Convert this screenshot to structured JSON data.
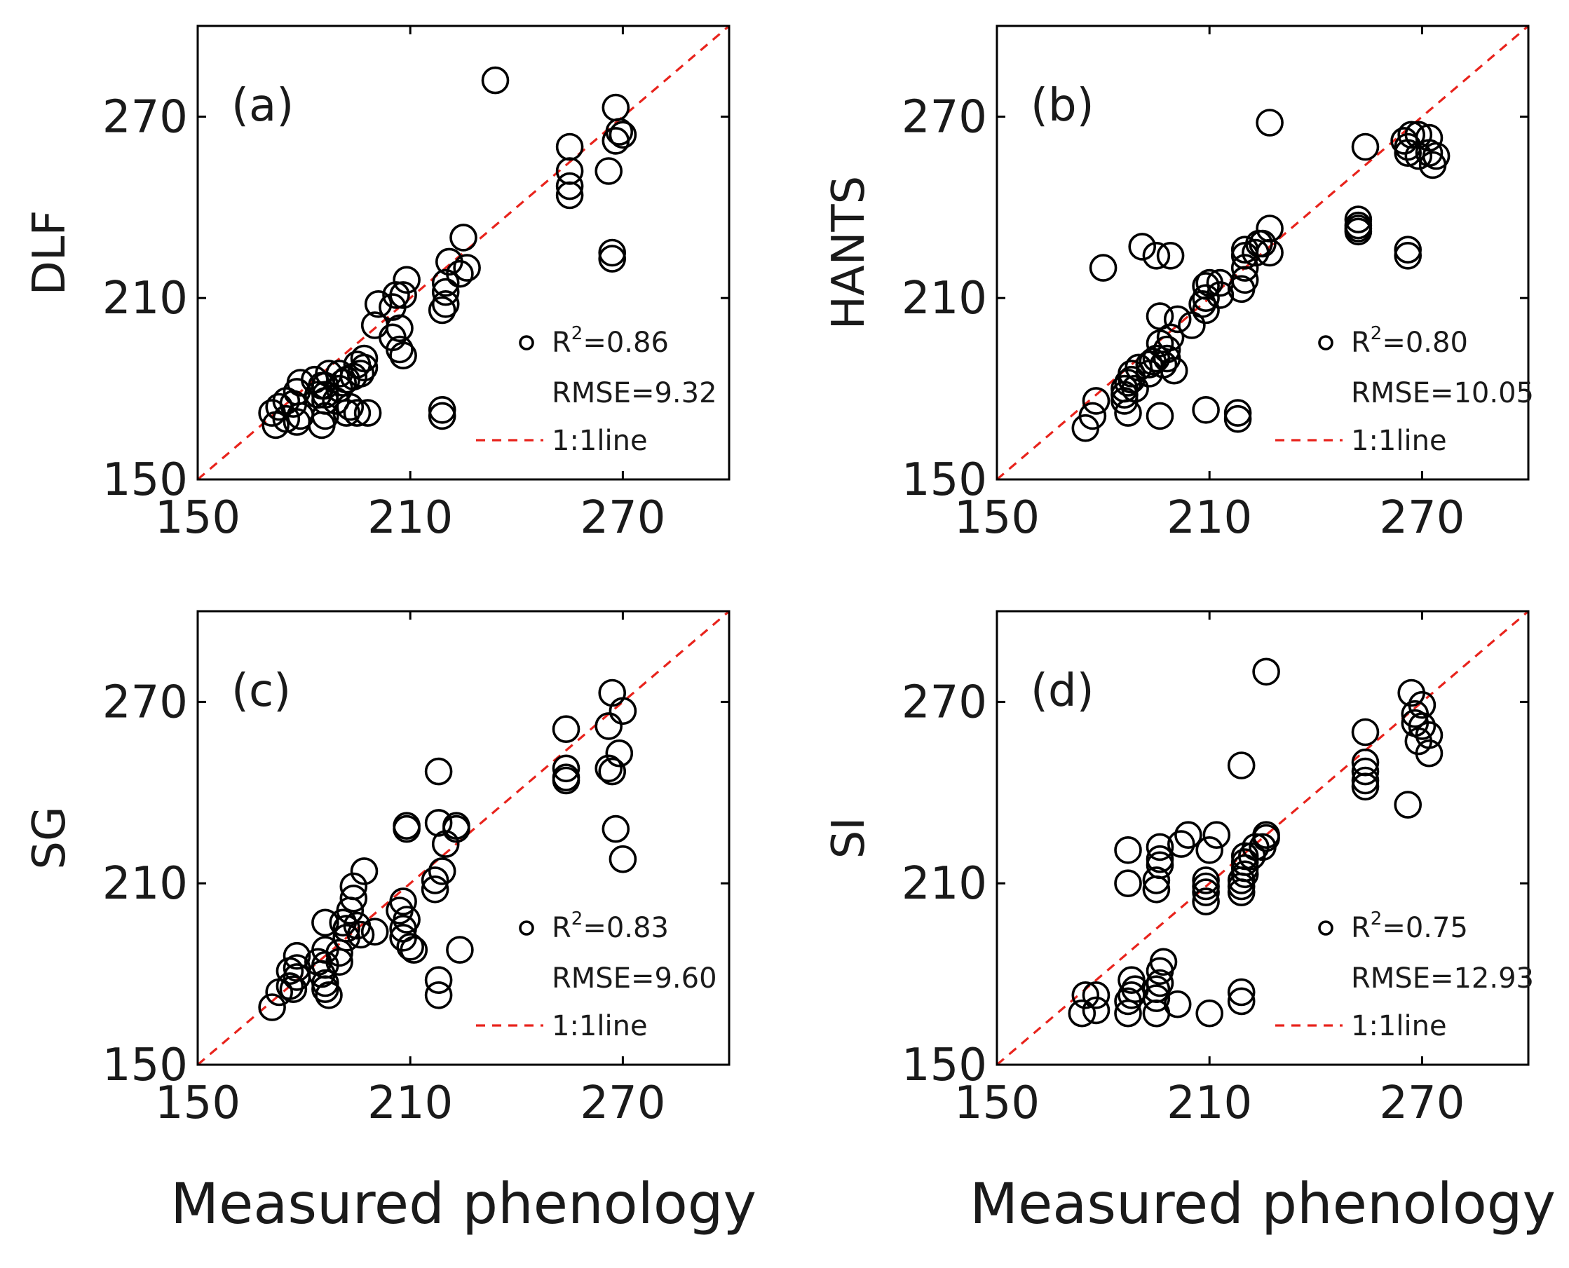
{
  "figure": {
    "xlabel": "Measured phenology"
  },
  "colors": {
    "marker": "#000000",
    "one_to_one": "#e8231c",
    "axis": "#000000"
  },
  "chart_data": [
    {
      "type": "scatter",
      "tag": "(a)",
      "ylabel": "DLF",
      "xlim": [
        150,
        300
      ],
      "ylim": [
        150,
        300
      ],
      "xticks": [
        "150",
        "210",
        "270"
      ],
      "yticks": [
        "150",
        "210",
        "270"
      ],
      "legend": {
        "r2": "0.86",
        "rmse": "RMSE=9.32",
        "line": "1:1line",
        "placement": "bottom-right"
      },
      "points": [
        [
          234,
          282
        ],
        [
          268,
          273
        ],
        [
          269,
          265
        ],
        [
          270,
          264
        ],
        [
          268,
          262
        ],
        [
          255,
          260
        ],
        [
          255,
          252
        ],
        [
          255,
          247
        ],
        [
          255,
          244
        ],
        [
          266,
          252
        ],
        [
          267,
          225
        ],
        [
          267,
          223
        ],
        [
          221,
          222
        ],
        [
          225,
          230
        ],
        [
          226,
          220
        ],
        [
          224,
          218
        ],
        [
          220,
          215
        ],
        [
          220,
          212
        ],
        [
          220,
          208
        ],
        [
          219,
          206
        ],
        [
          209,
          216
        ],
        [
          208,
          211
        ],
        [
          206,
          211
        ],
        [
          205,
          207
        ],
        [
          207,
          200
        ],
        [
          205,
          197
        ],
        [
          207,
          193
        ],
        [
          208,
          191
        ],
        [
          201,
          208
        ],
        [
          200,
          201
        ],
        [
          197,
          190
        ],
        [
          197,
          187
        ],
        [
          196,
          185
        ],
        [
          195,
          188
        ],
        [
          194,
          184
        ],
        [
          192,
          183
        ],
        [
          191,
          182
        ],
        [
          190,
          185
        ],
        [
          190,
          180
        ],
        [
          187,
          185
        ],
        [
          186,
          181
        ],
        [
          186,
          176
        ],
        [
          186,
          171
        ],
        [
          186,
          178
        ],
        [
          198,
          172
        ],
        [
          195,
          172
        ],
        [
          193,
          174
        ],
        [
          192,
          172
        ],
        [
          189,
          176
        ],
        [
          185,
          181
        ],
        [
          184,
          178
        ],
        [
          183,
          183
        ],
        [
          179,
          182
        ],
        [
          178,
          179
        ],
        [
          177,
          175
        ],
        [
          175,
          176
        ],
        [
          175,
          170
        ],
        [
          173,
          174
        ],
        [
          172,
          168
        ],
        [
          171,
          172
        ],
        [
          179,
          171
        ],
        [
          178,
          169
        ],
        [
          185,
          168
        ],
        [
          219,
          173
        ],
        [
          219,
          171
        ]
      ]
    },
    {
      "type": "scatter",
      "tag": "(b)",
      "ylabel": "HANTS",
      "xlim": [
        150,
        300
      ],
      "ylim": [
        150,
        300
      ],
      "xticks": [
        "150",
        "210",
        "270"
      ],
      "yticks": [
        "150",
        "210",
        "270"
      ],
      "legend": {
        "r2": "0.80",
        "rmse": "RMSE=10.05",
        "line": "1:1line",
        "placement": "bottom-right"
      },
      "points": [
        [
          227,
          268
        ],
        [
          265,
          262
        ],
        [
          267,
          264
        ],
        [
          269,
          264
        ],
        [
          272,
          263
        ],
        [
          266,
          260
        ],
        [
          266,
          258
        ],
        [
          269,
          257
        ],
        [
          272,
          258
        ],
        [
          274,
          257
        ],
        [
          273,
          254
        ],
        [
          254,
          260
        ],
        [
          252,
          236
        ],
        [
          252,
          234
        ],
        [
          252,
          232
        ],
        [
          252,
          233
        ],
        [
          266,
          226
        ],
        [
          266,
          224
        ],
        [
          227,
          233
        ],
        [
          227,
          225
        ],
        [
          225,
          228
        ],
        [
          224,
          228
        ],
        [
          223,
          225
        ],
        [
          220,
          226
        ],
        [
          220,
          224
        ],
        [
          220,
          220
        ],
        [
          220,
          216
        ],
        [
          219,
          213
        ],
        [
          213,
          215
        ],
        [
          213,
          211
        ],
        [
          210,
          215
        ],
        [
          209,
          214
        ],
        [
          209,
          210
        ],
        [
          208,
          208
        ],
        [
          209,
          206
        ],
        [
          191,
          227
        ],
        [
          195,
          224
        ],
        [
          199,
          224
        ],
        [
          180,
          220
        ],
        [
          199,
          197
        ],
        [
          198,
          193
        ],
        [
          198,
          190
        ],
        [
          197,
          188
        ],
        [
          194,
          189
        ],
        [
          190,
          187
        ],
        [
          188,
          185
        ],
        [
          188,
          183
        ],
        [
          189,
          180
        ],
        [
          187,
          182
        ],
        [
          186,
          180
        ],
        [
          186,
          178
        ],
        [
          186,
          176
        ],
        [
          187,
          172
        ],
        [
          178,
          176
        ],
        [
          177,
          171
        ],
        [
          175,
          167
        ],
        [
          200,
          186
        ],
        [
          205,
          201
        ],
        [
          201,
          203
        ],
        [
          196,
          204
        ],
        [
          196,
          195
        ],
        [
          195,
          190
        ],
        [
          193,
          188
        ],
        [
          193,
          185
        ],
        [
          196,
          171
        ],
        [
          209,
          173
        ],
        [
          218,
          172
        ],
        [
          218,
          170
        ]
      ]
    },
    {
      "type": "scatter",
      "tag": "(c)",
      "ylabel": "SG",
      "xlim": [
        150,
        300
      ],
      "ylim": [
        150,
        300
      ],
      "xticks": [
        "150",
        "210",
        "270"
      ],
      "yticks": [
        "150",
        "210",
        "270"
      ],
      "legend": {
        "r2": "0.83",
        "rmse": "RMSE=9.60",
        "line": "1:1line",
        "placement": "bottom-right"
      },
      "points": [
        [
          267,
          273
        ],
        [
          270,
          267
        ],
        [
          266,
          262
        ],
        [
          254,
          261
        ],
        [
          254,
          248
        ],
        [
          254,
          245
        ],
        [
          254,
          244
        ],
        [
          266,
          248
        ],
        [
          267,
          247
        ],
        [
          269,
          253
        ],
        [
          268,
          228
        ],
        [
          270,
          218
        ],
        [
          218,
          247
        ],
        [
          218,
          230
        ],
        [
          223,
          228
        ],
        [
          223,
          229
        ],
        [
          220,
          223
        ],
        [
          219,
          214
        ],
        [
          217,
          211
        ],
        [
          217,
          208
        ],
        [
          209,
          229
        ],
        [
          209,
          228
        ],
        [
          208,
          204
        ],
        [
          207,
          201
        ],
        [
          209,
          198
        ],
        [
          208,
          195
        ],
        [
          208,
          192
        ],
        [
          210,
          189
        ],
        [
          211,
          188
        ],
        [
          197,
          214
        ],
        [
          194,
          209
        ],
        [
          194,
          205
        ],
        [
          193,
          201
        ],
        [
          195,
          196
        ],
        [
          196,
          193
        ],
        [
          192,
          195
        ],
        [
          191,
          197
        ],
        [
          192,
          192
        ],
        [
          190,
          187
        ],
        [
          190,
          184
        ],
        [
          186,
          197
        ],
        [
          186,
          188
        ],
        [
          186,
          183
        ],
        [
          185,
          180
        ],
        [
          186,
          177
        ],
        [
          186,
          175
        ],
        [
          187,
          173
        ],
        [
          184,
          184
        ],
        [
          178,
          186
        ],
        [
          178,
          182
        ],
        [
          178,
          179
        ],
        [
          176,
          181
        ],
        [
          173,
          174
        ],
        [
          171,
          169
        ],
        [
          176,
          176
        ],
        [
          177,
          175
        ],
        [
          224,
          188
        ],
        [
          218,
          178
        ],
        [
          218,
          173
        ],
        [
          200,
          194
        ]
      ]
    },
    {
      "type": "scatter",
      "tag": "(d)",
      "ylabel": "SI",
      "xlim": [
        150,
        300
      ],
      "ylim": [
        150,
        300
      ],
      "xticks": [
        "150",
        "210",
        "270"
      ],
      "yticks": [
        "150",
        "210",
        "270"
      ],
      "legend": {
        "r2": "0.75",
        "rmse": "RMSE=12.93",
        "line": "1:1line",
        "placement": "bottom-right"
      },
      "points": [
        [
          226,
          280
        ],
        [
          267,
          273
        ],
        [
          270,
          269
        ],
        [
          268,
          266
        ],
        [
          268,
          263
        ],
        [
          270,
          262
        ],
        [
          272,
          259
        ],
        [
          269,
          257
        ],
        [
          272,
          253
        ],
        [
          266,
          236
        ],
        [
          254,
          260
        ],
        [
          254,
          250
        ],
        [
          254,
          247
        ],
        [
          254,
          244
        ],
        [
          254,
          242
        ],
        [
          219,
          249
        ],
        [
          226,
          226
        ],
        [
          226,
          225
        ],
        [
          225,
          222
        ],
        [
          223,
          222
        ],
        [
          222,
          219
        ],
        [
          220,
          219
        ],
        [
          220,
          217
        ],
        [
          220,
          215
        ],
        [
          220,
          213
        ],
        [
          219,
          211
        ],
        [
          219,
          209
        ],
        [
          219,
          207
        ],
        [
          212,
          226
        ],
        [
          210,
          221
        ],
        [
          209,
          211
        ],
        [
          209,
          209
        ],
        [
          209,
          207
        ],
        [
          209,
          204
        ],
        [
          204,
          226
        ],
        [
          202,
          223
        ],
        [
          196,
          222
        ],
        [
          187,
          221
        ],
        [
          196,
          218
        ],
        [
          196,
          216
        ],
        [
          187,
          210
        ],
        [
          195,
          211
        ],
        [
          195,
          208
        ],
        [
          197,
          184
        ],
        [
          196,
          181
        ],
        [
          196,
          177
        ],
        [
          195,
          175
        ],
        [
          195,
          172
        ],
        [
          195,
          167
        ],
        [
          189,
          175
        ],
        [
          188,
          178
        ],
        [
          188,
          173
        ],
        [
          187,
          171
        ],
        [
          187,
          167
        ],
        [
          178,
          173
        ],
        [
          178,
          168
        ],
        [
          175,
          173
        ],
        [
          174,
          167
        ],
        [
          201,
          170
        ],
        [
          210,
          167
        ],
        [
          219,
          174
        ],
        [
          219,
          171
        ]
      ]
    }
  ]
}
